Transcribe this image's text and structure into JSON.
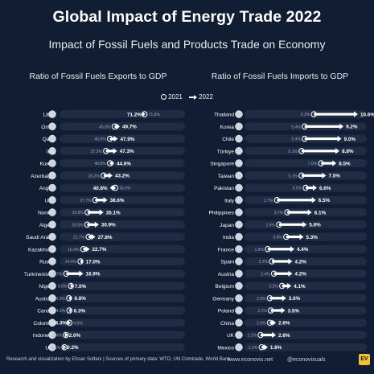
{
  "header": {
    "title": "Global Impact of Energy Trade 2022",
    "subtitle": "Impact of Fossil Fuels and Products Trade on Economy"
  },
  "legend": {
    "label_2021": "2021",
    "label_2022": "2022"
  },
  "footer": {
    "credit": "Research and visualization by Ehsan Soltani | Sources of primary data: WTO, UN Comtrade, World Bank",
    "site": "www.econovis.net",
    "social": "@econovisuals",
    "logo": "EV"
  },
  "colors": {
    "background": "#101d33",
    "arrow": "#ffffff",
    "track": "#1f2c44"
  },
  "chart_data": [
    {
      "type": "dumbbell",
      "title": "Ratio of Fossil Fuels Exports to GDP",
      "series": [
        {
          "name": "2021",
          "values": [
            71.8,
            45.0,
            40.8,
            37.3,
            40.8,
            35.2,
            45.6,
            27.7,
            20.8,
            20.5,
            21.7,
            16.9,
            14.4,
            1.7,
            5.9,
            4.2,
            4.5,
            4.6,
            1.4,
            0.1
          ]
        },
        {
          "name": "2022",
          "values": [
            71.2,
            49.7,
            47.9,
            47.3,
            44.6,
            43.2,
            40.8,
            38.6,
            35.1,
            30.9,
            27.8,
            22.7,
            17.0,
            16.9,
            7.0,
            6.8,
            6.3,
            4.3,
            2.0,
            0.2
          ]
        }
      ],
      "rows": [
        {
          "country": "Libya",
          "v2021": 71.8,
          "v2022": 71.2,
          "l2021": "71.8%",
          "l2022": "71.2%"
        },
        {
          "country": "Oman",
          "v2021": 45.0,
          "v2022": 49.7,
          "l2021": "45.0%",
          "l2022": "49.7%"
        },
        {
          "country": "Qatar",
          "v2021": 40.8,
          "v2022": 47.9,
          "l2021": "40.8%",
          "l2022": "47.9%"
        },
        {
          "country": "Iraq",
          "v2021": 37.3,
          "v2022": 47.3,
          "l2021": "37.3%",
          "l2022": "47.3%"
        },
        {
          "country": "Kuwait",
          "v2021": 40.8,
          "v2022": 44.6,
          "l2021": "40.8%",
          "l2022": "44.6%"
        },
        {
          "country": "Azerbaijan",
          "v2021": 35.2,
          "v2022": 43.2,
          "l2021": "35.2%",
          "l2022": "43.2%"
        },
        {
          "country": "Angola",
          "v2021": 45.6,
          "v2022": 40.8,
          "l2021": "45.6%",
          "l2022": "40.8%"
        },
        {
          "country": "UAE",
          "v2021": 27.7,
          "v2022": 38.6,
          "l2021": "27.7%",
          "l2022": "38.6%"
        },
        {
          "country": "Norway",
          "v2021": 20.8,
          "v2022": 35.1,
          "l2021": "20.8%",
          "l2022": "35.1%"
        },
        {
          "country": "Algeria",
          "v2021": 20.5,
          "v2022": 30.9,
          "l2021": "20.5%",
          "l2022": "30.9%"
        },
        {
          "country": "Saudi Arabia",
          "v2021": 21.7,
          "v2022": 27.8,
          "l2021": "21.7%",
          "l2022": "27.8%"
        },
        {
          "country": "Kazakhstan",
          "v2021": 16.9,
          "v2022": 22.7,
          "l2021": "16.9%",
          "l2022": "22.7%"
        },
        {
          "country": "Russia",
          "v2021": 14.4,
          "v2022": 17.0,
          "l2021": "14.4%",
          "l2022": "17.0%"
        },
        {
          "country": "Turkmenistan",
          "v2021": 1.7,
          "v2022": 16.9,
          "l2021": "1.7%",
          "l2022": "16.9%"
        },
        {
          "country": "Nigeria",
          "v2021": 5.9,
          "v2022": 7.0,
          "l2021": "5.9%",
          "l2022": "7.0%"
        },
        {
          "country": "Australia",
          "v2021": 4.2,
          "v2022": 6.8,
          "l2021": "4.2%",
          "l2022": "6.8%"
        },
        {
          "country": "Canada",
          "v2021": 4.5,
          "v2022": 6.3,
          "l2021": "4.5%",
          "l2022": "6.3%"
        },
        {
          "country": "Colombia",
          "v2021": 4.6,
          "v2022": 4.3,
          "l2021": "4.6%",
          "l2022": "4.3%"
        },
        {
          "country": "Indonesia",
          "v2021": 1.4,
          "v2022": 2.0,
          "l2021": "1.4%",
          "l2022": "2.0%"
        },
        {
          "country": "U.S.",
          "v2021": 0.1,
          "v2022": 0.2,
          "l2021": "0.1%",
          "l2022": "0.2%"
        }
      ],
      "xlim": [
        0,
        72
      ]
    },
    {
      "type": "dumbbell",
      "title": "Ratio of Fossil Fuels Imports to GDP",
      "series": [
        {
          "name": "2021",
          "values": [
            6.3,
            5.4,
            5.4,
            5.1,
            7.0,
            5.1,
            5.5,
            2.7,
            3.7,
            2.9,
            3.6,
            1.8,
            2.2,
            2.4,
            3.2,
            2.0,
            2.1,
            2.0,
            1.1,
            1.2
          ]
        },
        {
          "name": "2022",
          "values": [
            10.6,
            9.2,
            9.0,
            8.8,
            8.5,
            7.5,
            6.6,
            6.5,
            6.1,
            5.6,
            5.3,
            4.4,
            4.2,
            4.2,
            4.1,
            3.6,
            3.5,
            2.6,
            2.6,
            1.8
          ]
        }
      ],
      "rows": [
        {
          "country": "Thailand",
          "v2021": 6.3,
          "v2022": 10.6,
          "l2021": "6.3%",
          "l2022": "10.6%"
        },
        {
          "country": "Korea",
          "v2021": 5.4,
          "v2022": 9.2,
          "l2021": "5.4%",
          "l2022": "9.2%"
        },
        {
          "country": "Chile",
          "v2021": 5.4,
          "v2022": 9.0,
          "l2021": "5.4%",
          "l2022": "9.0%"
        },
        {
          "country": "Türkiye",
          "v2021": 5.1,
          "v2022": 8.8,
          "l2021": "5.1%",
          "l2022": "8.8%"
        },
        {
          "country": "Singapore",
          "v2021": 7.0,
          "v2022": 8.5,
          "l2021": "7.0%",
          "l2022": "8.5%"
        },
        {
          "country": "Taiwan",
          "v2021": 5.1,
          "v2022": 7.5,
          "l2021": "5.1%",
          "l2022": "7.5%"
        },
        {
          "country": "Pakistan",
          "v2021": 5.5,
          "v2022": 6.6,
          "l2021": "5.5%",
          "l2022": "6.6%"
        },
        {
          "country": "Italy",
          "v2021": 2.7,
          "v2022": 6.5,
          "l2021": "2.7%",
          "l2022": "6.5%"
        },
        {
          "country": "Philippines",
          "v2021": 3.7,
          "v2022": 6.1,
          "l2021": "3.7%",
          "l2022": "6.1%"
        },
        {
          "country": "Japan",
          "v2021": 2.9,
          "v2022": 5.6,
          "l2021": "2.9%",
          "l2022": "5.6%"
        },
        {
          "country": "India",
          "v2021": 3.6,
          "v2022": 5.3,
          "l2021": "3.6%",
          "l2022": "5.3%"
        },
        {
          "country": "France",
          "v2021": 1.8,
          "v2022": 4.4,
          "l2021": "1.8%",
          "l2022": "4.4%"
        },
        {
          "country": "Spain",
          "v2021": 2.2,
          "v2022": 4.2,
          "l2021": "2.2%",
          "l2022": "4.2%"
        },
        {
          "country": "Austria",
          "v2021": 2.4,
          "v2022": 4.2,
          "l2021": "2.4%",
          "l2022": "4.2%"
        },
        {
          "country": "Belgium",
          "v2021": 3.2,
          "v2022": 4.1,
          "l2021": "3.2%",
          "l2022": "4.1%"
        },
        {
          "country": "Germany",
          "v2021": 2.0,
          "v2022": 3.6,
          "l2021": "2.0%",
          "l2022": "3.6%"
        },
        {
          "country": "Poland",
          "v2021": 2.1,
          "v2022": 3.5,
          "l2021": "2.1%",
          "l2022": "3.5%"
        },
        {
          "country": "China",
          "v2021": 2.0,
          "v2022": 2.6,
          "l2021": "2.0%",
          "l2022": "2.6%"
        },
        {
          "country": "UK",
          "v2021": 1.1,
          "v2022": 2.6,
          "l2021": "1.1%",
          "l2022": "2.6%"
        },
        {
          "country": "Mexico",
          "v2021": 1.2,
          "v2022": 1.8,
          "l2021": "1.2%",
          "l2022": "1.8%"
        }
      ],
      "xlim": [
        0,
        10.6
      ]
    }
  ]
}
